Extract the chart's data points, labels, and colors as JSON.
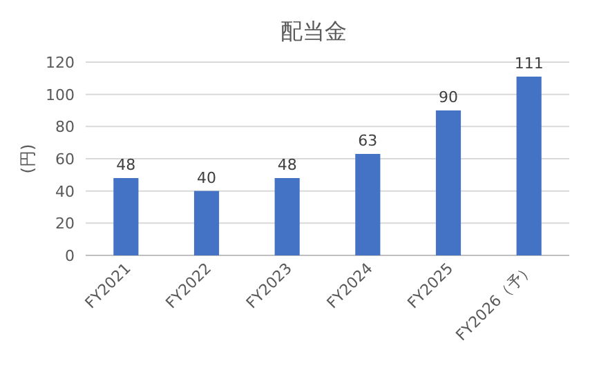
{
  "chart_data": {
    "type": "bar",
    "title": "配当金",
    "ylabel": "(円)",
    "categories": [
      "FY2021",
      "FY2022",
      "FY2023",
      "FY2024",
      "FY2025",
      "FY2026（予）"
    ],
    "values": [
      48,
      40,
      48,
      63,
      90,
      111
    ],
    "color": "#4472c4",
    "ylim": [
      0,
      120
    ],
    "yticks": [
      0,
      20,
      40,
      60,
      80,
      100,
      120
    ],
    "grid": "y",
    "data_labels": true
  }
}
